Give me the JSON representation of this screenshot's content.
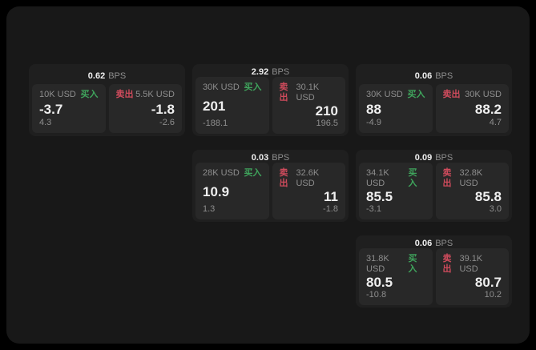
{
  "colors": {
    "page_bg": "#000000",
    "panel_bg": "#181818",
    "card_bg": "#1f1f1f",
    "tile_bg": "#282828",
    "text_primary": "#efefef",
    "text_secondary": "#8e8e8e",
    "buy_green": "#3fa45c",
    "sell_red": "#cf4b5c"
  },
  "labels": {
    "bps_suffix": "BPS",
    "buy": "买入",
    "sell": "卖出"
  },
  "cards": [
    {
      "bps": "0.62",
      "row": 1,
      "col": 1,
      "buy": {
        "amount": "10K USD",
        "price": "-3.7",
        "delta": "4.3"
      },
      "sell": {
        "amount": "5.5K USD",
        "price": "-1.8",
        "delta": "-2.6"
      }
    },
    {
      "bps": "2.92",
      "row": 1,
      "col": 2,
      "buy": {
        "amount": "30K USD",
        "price": "201",
        "delta": "-188.1"
      },
      "sell": {
        "amount": "30.1K USD",
        "price": "210",
        "delta": "196.5"
      }
    },
    {
      "bps": "0.06",
      "row": 1,
      "col": 3,
      "buy": {
        "amount": "30K USD",
        "price": "88",
        "delta": "-4.9"
      },
      "sell": {
        "amount": "30K USD",
        "price": "88.2",
        "delta": "4.7"
      }
    },
    {
      "bps": "0.03",
      "row": 2,
      "col": 2,
      "buy": {
        "amount": "28K USD",
        "price": "10.9",
        "delta": "1.3"
      },
      "sell": {
        "amount": "32.6K USD",
        "price": "11",
        "delta": "-1.8"
      }
    },
    {
      "bps": "0.09",
      "row": 2,
      "col": 3,
      "buy": {
        "amount": "34.1K USD",
        "price": "85.5",
        "delta": "-3.1"
      },
      "sell": {
        "amount": "32.8K USD",
        "price": "85.8",
        "delta": "3.0"
      }
    },
    {
      "bps": "0.06",
      "row": 3,
      "col": 3,
      "buy": {
        "amount": "31.8K USD",
        "price": "80.5",
        "delta": "-10.8"
      },
      "sell": {
        "amount": "39.1K USD",
        "price": "80.7",
        "delta": "10.2"
      }
    }
  ]
}
